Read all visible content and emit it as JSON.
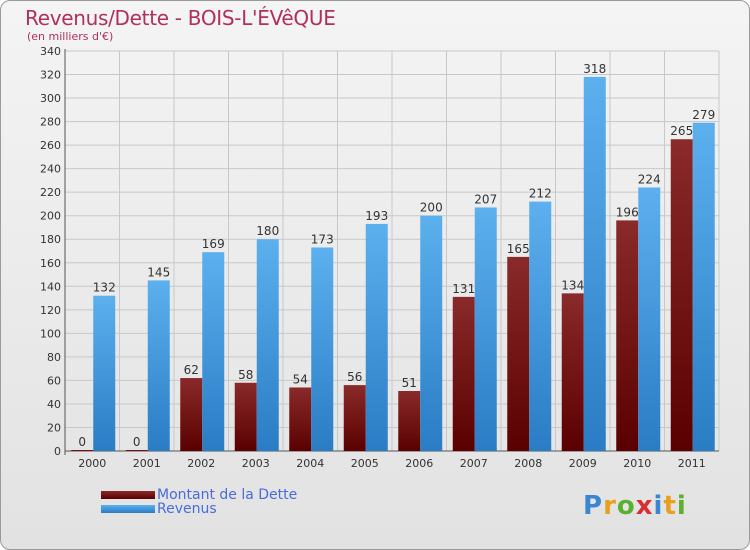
{
  "header": {
    "title": "Revenus/Dette - BOIS-L'ÉVêQUE",
    "subtitle": "(en milliers d'€)"
  },
  "legend": {
    "items": [
      {
        "label": "Montant de la Dette",
        "color": "#6b0e10"
      },
      {
        "label": "Revenus",
        "color": "#3d97da"
      }
    ]
  },
  "brand": {
    "letters": [
      "P",
      "r",
      "o",
      "x",
      "i",
      "t",
      "i"
    ],
    "colors": [
      "#3a86d0",
      "#e8a020",
      "#5bb030",
      "#d83030",
      "#3a86d0",
      "#e8a020",
      "#5bb030"
    ]
  },
  "chart_data": {
    "type": "bar",
    "title": "Revenus/Dette - BOIS-L'ÉVêQUE",
    "ylabel": "(en milliers d'€)",
    "xlabel": "",
    "categories": [
      "2000",
      "2001",
      "2002",
      "2003",
      "2004",
      "2005",
      "2006",
      "2007",
      "2008",
      "2009",
      "2010",
      "2011"
    ],
    "ylim": [
      0,
      340
    ],
    "yticks": [
      0,
      20,
      40,
      60,
      80,
      100,
      120,
      140,
      160,
      180,
      200,
      220,
      240,
      260,
      280,
      300,
      320,
      340
    ],
    "grid": true,
    "series": [
      {
        "name": "Montant de la Dette",
        "color": "#6b0e10",
        "values": [
          0,
          0,
          62,
          58,
          54,
          56,
          51,
          131,
          165,
          134,
          196,
          265
        ]
      },
      {
        "name": "Revenus",
        "color": "#3d97da",
        "values": [
          132,
          145,
          169,
          180,
          173,
          193,
          200,
          207,
          212,
          318,
          224,
          279
        ]
      }
    ]
  }
}
